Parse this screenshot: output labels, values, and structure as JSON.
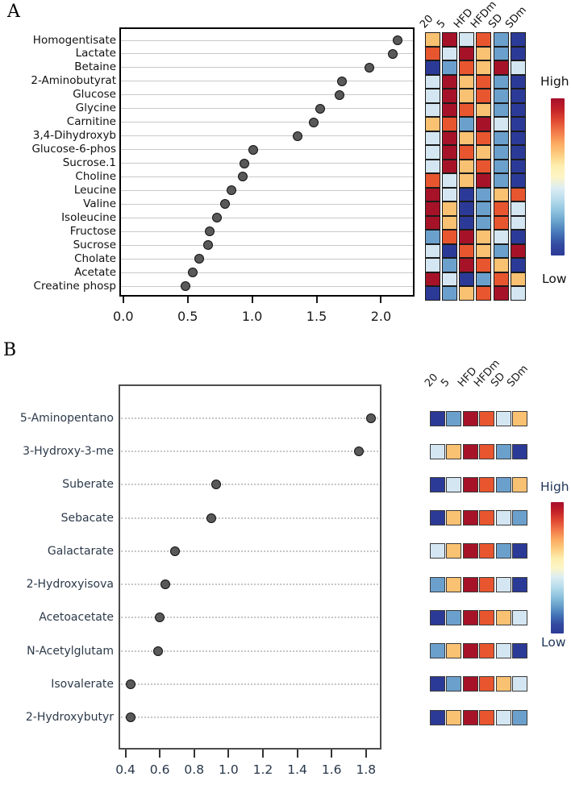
{
  "palette": {
    "DR": "#a61328",
    "OR": "#e8562f",
    "LO": "#f9c172",
    "PB": "#d4e6f1",
    "SB": "#6ba0cc",
    "NV": "#2c3a97"
  },
  "colorbar_gradient": [
    "#a50f2c",
    "#c42227",
    "#e04a32",
    "#f27a4a",
    "#fbaa60",
    "#fdcd80",
    "#fdeeae",
    "#fdf5c6",
    "#dcedf3",
    "#b9ddec",
    "#90c4df",
    "#68a1cc",
    "#4576b8",
    "#334ba0",
    "#2c3a97"
  ],
  "chart_data": [
    {
      "type": "scatter",
      "panel": "A",
      "orientation": "horizontal-dot-plot",
      "grid_style": "solid",
      "categories": [
        "Homogentisate",
        "Lactate",
        "Betaine",
        "2-Aminobutyrat",
        "Glucose",
        "Glycine",
        "Carnitine",
        "3,4-Dihydroxyb",
        "Glucose-6-phos",
        "Sucrose.1",
        "Choline",
        "Leucine",
        "Valine",
        "Isoleucine",
        "Fructose",
        "Sucrose",
        "Cholate",
        "Acetate",
        "Creatine phosp"
      ],
      "values": [
        2.13,
        2.09,
        1.91,
        1.7,
        1.68,
        1.53,
        1.48,
        1.35,
        1.01,
        0.94,
        0.93,
        0.84,
        0.79,
        0.73,
        0.67,
        0.66,
        0.59,
        0.54,
        0.48
      ],
      "xlim": [
        -0.03,
        2.26
      ],
      "x_ticks": [
        0.0,
        0.5,
        1.0,
        1.5,
        2.0
      ],
      "x_tick_labels": [
        "0.0",
        "0.5",
        "1.0",
        "1.5",
        "2.0"
      ],
      "heatmap": {
        "columns": [
          "20",
          "5",
          "HFD",
          "HFDm",
          "SD",
          "SDm"
        ],
        "cells": [
          [
            "LO",
            "DR",
            "PB",
            "OR",
            "SB",
            "NV"
          ],
          [
            "OR",
            "PB",
            "DR",
            "LO",
            "SB",
            "NV"
          ],
          [
            "NV",
            "SB",
            "OR",
            "LO",
            "DR",
            "PB"
          ],
          [
            "PB",
            "DR",
            "LO",
            "OR",
            "SB",
            "NV"
          ],
          [
            "PB",
            "DR",
            "LO",
            "OR",
            "SB",
            "NV"
          ],
          [
            "PB",
            "DR",
            "OR",
            "LO",
            "SB",
            "NV"
          ],
          [
            "LO",
            "OR",
            "SB",
            "DR",
            "PB",
            "NV"
          ],
          [
            "PB",
            "DR",
            "LO",
            "OR",
            "SB",
            "NV"
          ],
          [
            "PB",
            "DR",
            "OR",
            "LO",
            "SB",
            "NV"
          ],
          [
            "PB",
            "DR",
            "LO",
            "OR",
            "SB",
            "NV"
          ],
          [
            "OR",
            "PB",
            "LO",
            "DR",
            "SB",
            "NV"
          ],
          [
            "DR",
            "PB",
            "NV",
            "SB",
            "LO",
            "OR"
          ],
          [
            "DR",
            "LO",
            "NV",
            "SB",
            "OR",
            "PB"
          ],
          [
            "DR",
            "LO",
            "NV",
            "SB",
            "OR",
            "PB"
          ],
          [
            "SB",
            "OR",
            "DR",
            "LO",
            "PB",
            "NV"
          ],
          [
            "PB",
            "NV",
            "OR",
            "LO",
            "SB",
            "DR"
          ],
          [
            "PB",
            "SB",
            "DR",
            "OR",
            "LO",
            "NV"
          ],
          [
            "DR",
            "PB",
            "NV",
            "SB",
            "OR",
            "LO"
          ],
          [
            "NV",
            "SB",
            "LO",
            "OR",
            "DR",
            "PB"
          ]
        ]
      },
      "colorbar": {
        "high": "High",
        "low": "Low"
      }
    },
    {
      "type": "scatter",
      "panel": "B",
      "orientation": "horizontal-dot-plot",
      "grid_style": "dotted",
      "categories": [
        "5-Aminopentano",
        "3-Hydroxy-3-me",
        "Suberate",
        "Sebacate",
        "Galactarate",
        "2-Hydroxyisova",
        "Acetoacetate",
        "N-Acetylglutam",
        "Isovalerate",
        "2-Hydroxybutyr"
      ],
      "values": [
        1.83,
        1.76,
        0.93,
        0.9,
        0.69,
        0.63,
        0.6,
        0.59,
        0.43,
        0.43
      ],
      "xlim": [
        0.36,
        1.89
      ],
      "x_ticks": [
        0.4,
        0.6,
        0.8,
        1.0,
        1.2,
        1.4,
        1.6,
        1.8
      ],
      "x_tick_labels": [
        "0.4",
        "0.6",
        "0.8",
        "1.0",
        "1.2",
        "1.4",
        "1.6",
        "1.8"
      ],
      "heatmap": {
        "columns": [
          "20",
          "5",
          "HFD",
          "HFDm",
          "SD",
          "SDm"
        ],
        "cells": [
          [
            "NV",
            "SB",
            "DR",
            "OR",
            "PB",
            "LO"
          ],
          [
            "PB",
            "LO",
            "DR",
            "OR",
            "SB",
            "NV"
          ],
          [
            "NV",
            "PB",
            "DR",
            "OR",
            "SB",
            "LO"
          ],
          [
            "NV",
            "LO",
            "DR",
            "OR",
            "PB",
            "SB"
          ],
          [
            "PB",
            "LO",
            "DR",
            "OR",
            "SB",
            "NV"
          ],
          [
            "SB",
            "LO",
            "DR",
            "OR",
            "PB",
            "NV"
          ],
          [
            "NV",
            "SB",
            "DR",
            "OR",
            "LO",
            "PB"
          ],
          [
            "SB",
            "LO",
            "DR",
            "OR",
            "PB",
            "NV"
          ],
          [
            "NV",
            "SB",
            "DR",
            "OR",
            "LO",
            "PB"
          ],
          [
            "NV",
            "LO",
            "DR",
            "OR",
            "PB",
            "SB"
          ]
        ]
      },
      "colorbar": {
        "high": "High",
        "low": "Low"
      }
    }
  ]
}
